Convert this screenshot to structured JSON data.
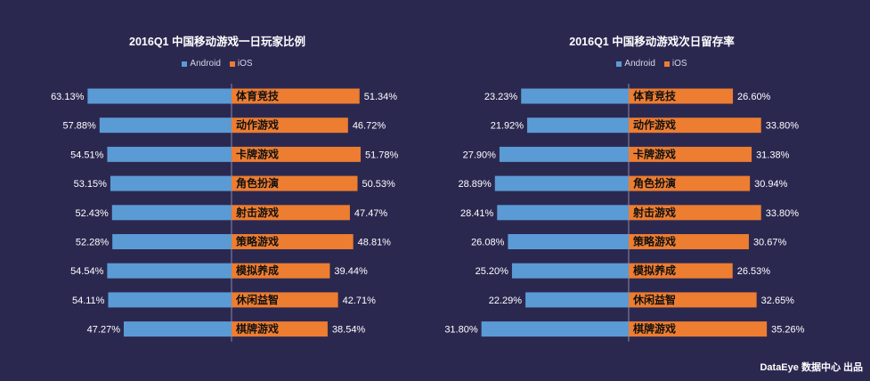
{
  "colors": {
    "android": "#5b9bd5",
    "ios": "#ed7d31",
    "background": "#2b2850",
    "axis": "#8a88a8",
    "text": "#ffffff"
  },
  "charts": [
    {
      "legend_android": "Android",
      "legend_ios": "iOS"
    },
    {
      "legend_android": "Android",
      "legend_ios": "iOS"
    }
  ],
  "chart_data": [
    {
      "type": "bar",
      "title": "2016Q1 中国移动游戏一日玩家比例",
      "categories": [
        "体育竞技",
        "动作游戏",
        "卡牌游戏",
        "角色扮演",
        "射击游戏",
        "策略游戏",
        "模拟养成",
        "休闲益智",
        "棋牌游戏"
      ],
      "series": [
        {
          "name": "Android",
          "values": [
            63.13,
            57.88,
            54.51,
            53.15,
            52.43,
            52.28,
            54.54,
            54.11,
            47.27
          ],
          "labels": [
            "63.13%",
            "57.88%",
            "54.51%",
            "53.15%",
            "52.43%",
            "52.28%",
            "54.54%",
            "54.11%",
            "47.27%"
          ]
        },
        {
          "name": "iOS",
          "values": [
            51.34,
            46.72,
            51.78,
            50.53,
            47.47,
            48.81,
            39.44,
            42.71,
            38.54
          ],
          "labels": [
            "51.34%",
            "46.72%",
            "51.78%",
            "50.53%",
            "47.47%",
            "48.81%",
            "39.44%",
            "42.71%",
            "38.54%"
          ]
        }
      ],
      "legend": "top-center",
      "grid": false
    },
    {
      "type": "bar",
      "title": "2016Q1 中国移动游戏次日留存率",
      "categories": [
        "体育竞技",
        "动作游戏",
        "卡牌游戏",
        "角色扮演",
        "射击游戏",
        "策略游戏",
        "模拟养成",
        "休闲益智",
        "棋牌游戏"
      ],
      "series": [
        {
          "name": "Android",
          "values": [
            23.23,
            21.92,
            27.9,
            28.89,
            28.41,
            26.08,
            25.2,
            22.29,
            31.8
          ],
          "labels": [
            "23.23%",
            "21.92%",
            "27.90%",
            "28.89%",
            "28.41%",
            "26.08%",
            "25.20%",
            "22.29%",
            "31.80%"
          ]
        },
        {
          "name": "iOS",
          "values": [
            26.6,
            33.8,
            31.38,
            30.94,
            33.8,
            30.67,
            26.53,
            32.65,
            35.26
          ],
          "labels": [
            "26.60%",
            "33.80%",
            "31.38%",
            "30.94%",
            "33.80%",
            "30.67%",
            "26.53%",
            "32.65%",
            "35.26%"
          ]
        }
      ],
      "legend": "top-center",
      "grid": false
    }
  ],
  "footer": {
    "credit": "DataEye 数据中心 出品"
  }
}
